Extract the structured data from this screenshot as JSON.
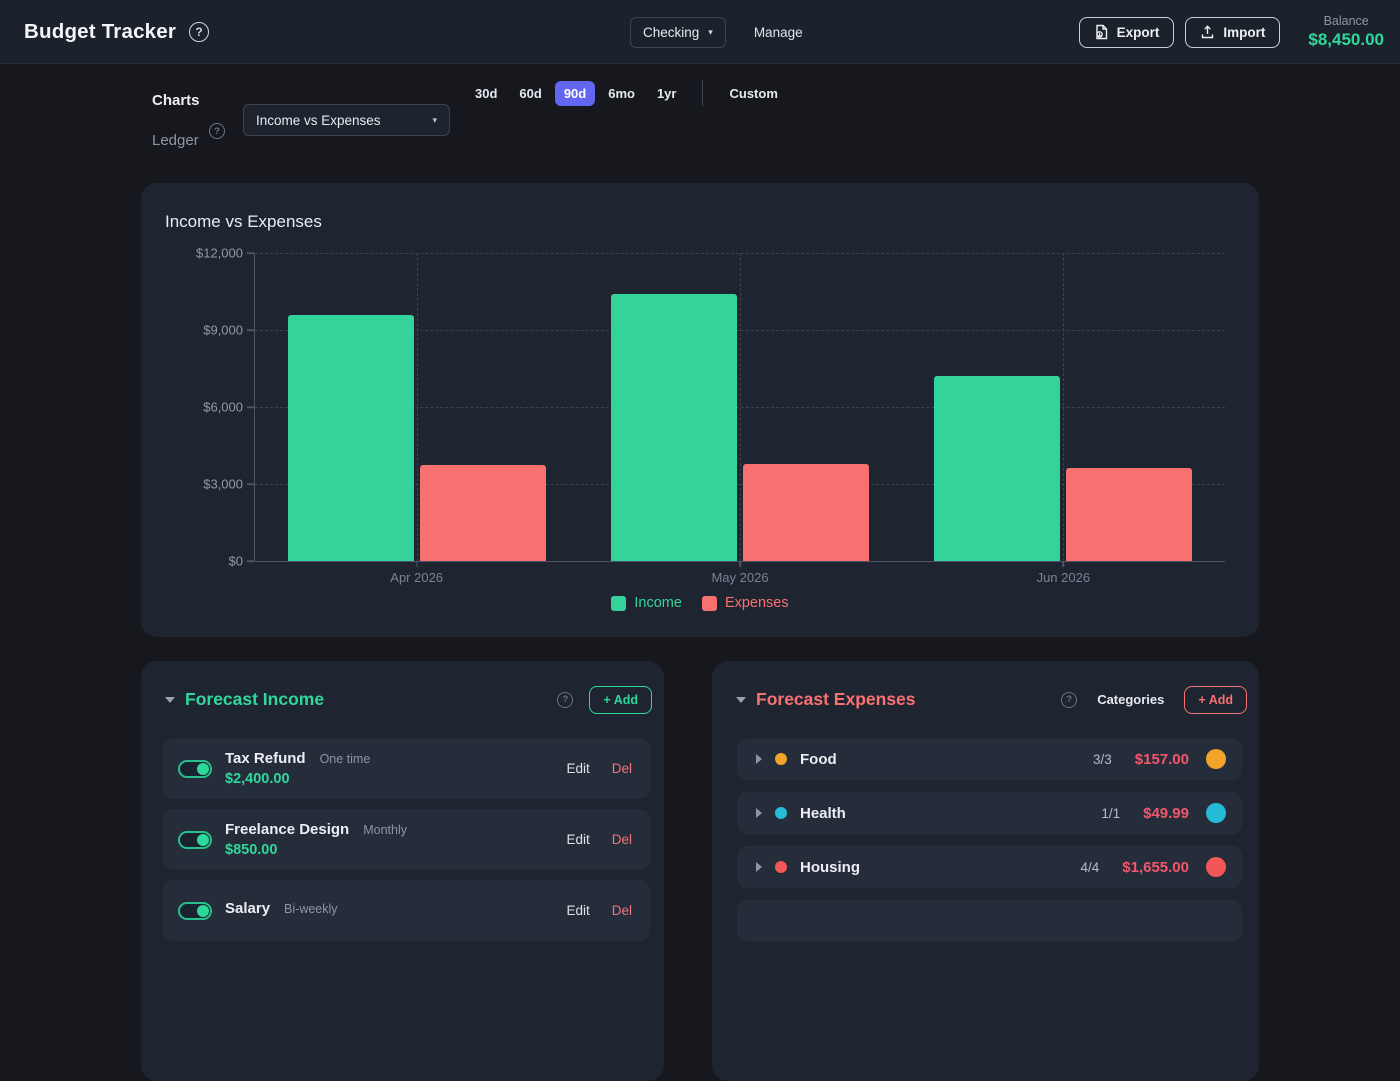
{
  "colors": {
    "accent_green": "#2fd79b",
    "accent_red": "#f87171",
    "accent_indigo": "#6366f1",
    "income_bar": "#34d399",
    "expense_bar": "#f87171"
  },
  "header": {
    "app_title": "Budget Tracker",
    "help_icon": "?",
    "account_select_value": "Checking",
    "manage_label": "Manage",
    "export_label": "Export",
    "import_label": "Import",
    "balance_label": "Balance",
    "balance_value": "$8,450.00"
  },
  "nav": {
    "tabs": [
      {
        "label": "Charts",
        "active": true
      },
      {
        "label": "Ledger",
        "active": false
      }
    ],
    "chart_select_value": "Income vs Expenses",
    "ranges": [
      {
        "label": "30d"
      },
      {
        "label": "60d"
      },
      {
        "label": "90d"
      },
      {
        "label": "6mo"
      },
      {
        "label": "1yr"
      }
    ],
    "active_range": "90d",
    "custom_label": "Custom"
  },
  "chart_data": {
    "type": "bar",
    "title": "Income vs Expenses",
    "categories": [
      "Apr 2026",
      "May 2026",
      "Jun 2026"
    ],
    "series": [
      {
        "name": "Income",
        "color": "#34d399",
        "values": [
          9600,
          10400,
          7200
        ]
      },
      {
        "name": "Expenses",
        "color": "#f87171",
        "values": [
          3750,
          3790,
          3630
        ]
      }
    ],
    "ylim": [
      0,
      12000
    ],
    "yticks": [
      {
        "value": 0,
        "label": "$0"
      },
      {
        "value": 3000,
        "label": "$3,000"
      },
      {
        "value": 6000,
        "label": "$6,000"
      },
      {
        "value": 9000,
        "label": "$9,000"
      },
      {
        "value": 12000,
        "label": "$12,000"
      }
    ],
    "grid": true,
    "legend_position": "bottom"
  },
  "income_panel": {
    "title": "Forecast Income",
    "add_label": "+ Add",
    "edit_label": "Edit",
    "del_label": "Del",
    "items": [
      {
        "name": "Tax Refund",
        "cadence": "One time",
        "amount": "$2,400.00"
      },
      {
        "name": "Freelance Design",
        "cadence": "Monthly",
        "amount": "$850.00"
      },
      {
        "name": "Salary",
        "cadence": "Bi-weekly"
      }
    ]
  },
  "expense_panel": {
    "title": "Forecast Expenses",
    "categories_label": "Categories",
    "add_label": "+ Add",
    "rows": [
      {
        "name": "Food",
        "count": "3/3",
        "amount": "$157.00",
        "color": "#f2a42a"
      },
      {
        "name": "Health",
        "count": "1/1",
        "amount": "$49.99",
        "color": "#26bcd7"
      },
      {
        "name": "Housing",
        "count": "4/4",
        "amount": "$1,655.00",
        "color": "#f25757"
      }
    ]
  }
}
